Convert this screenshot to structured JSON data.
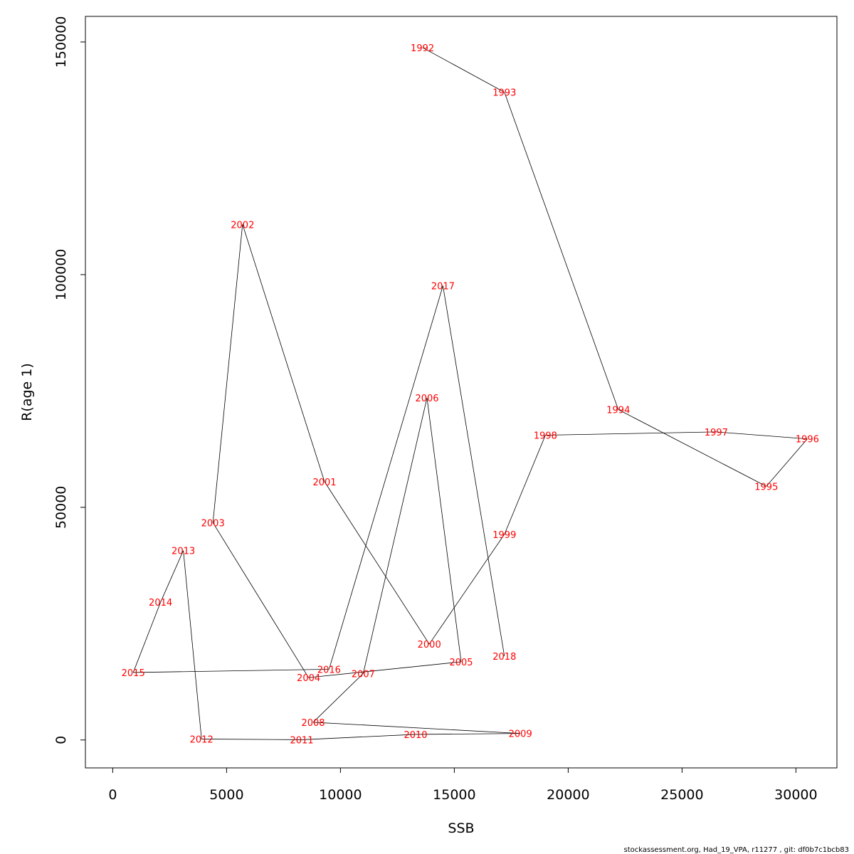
{
  "chart_data": {
    "type": "line",
    "xlabel": "SSB",
    "ylabel": "R(age 1)",
    "xlim": [
      -1200,
      31800
    ],
    "ylim": [
      -6000,
      155500
    ],
    "x_ticks": [
      0,
      5000,
      10000,
      15000,
      20000,
      25000,
      30000
    ],
    "y_ticks": [
      0,
      50000,
      100000,
      150000
    ],
    "grid": false,
    "point_label_color": "#ff0000",
    "line_color": "#000000",
    "points": [
      {
        "label": "1992",
        "x": 13600,
        "y": 148800
      },
      {
        "label": "1993",
        "x": 17200,
        "y": 139200
      },
      {
        "label": "1994",
        "x": 22200,
        "y": 71000
      },
      {
        "label": "1995",
        "x": 28700,
        "y": 54500
      },
      {
        "label": "1996",
        "x": 30500,
        "y": 64700
      },
      {
        "label": "1997",
        "x": 26500,
        "y": 66200
      },
      {
        "label": "1998",
        "x": 19000,
        "y": 65500
      },
      {
        "label": "1999",
        "x": 17200,
        "y": 44200
      },
      {
        "label": "2000",
        "x": 13900,
        "y": 20600
      },
      {
        "label": "2001",
        "x": 9300,
        "y": 55500
      },
      {
        "label": "2002",
        "x": 5700,
        "y": 110800
      },
      {
        "label": "2003",
        "x": 4400,
        "y": 46700
      },
      {
        "label": "2004",
        "x": 8600,
        "y": 13400
      },
      {
        "label": "2005",
        "x": 15300,
        "y": 16800
      },
      {
        "label": "2006",
        "x": 13800,
        "y": 73500
      },
      {
        "label": "2007",
        "x": 11000,
        "y": 14300
      },
      {
        "label": "2008",
        "x": 8800,
        "y": 3800
      },
      {
        "label": "2009",
        "x": 17900,
        "y": 1400
      },
      {
        "label": "2010",
        "x": 13300,
        "y": 1200
      },
      {
        "label": "2011",
        "x": 8300,
        "y": 50
      },
      {
        "label": "2012",
        "x": 3900,
        "y": 200
      },
      {
        "label": "2013",
        "x": 3100,
        "y": 40700
      },
      {
        "label": "2014",
        "x": 2100,
        "y": 29600
      },
      {
        "label": "2015",
        "x": 900,
        "y": 14500
      },
      {
        "label": "2016",
        "x": 9500,
        "y": 15200
      },
      {
        "label": "2017",
        "x": 14500,
        "y": 97600
      },
      {
        "label": "2018",
        "x": 17200,
        "y": 18000
      }
    ]
  },
  "footer": "stockassessment.org, Had_19_VPA, r11277 , git: df0b7c1bcb83"
}
